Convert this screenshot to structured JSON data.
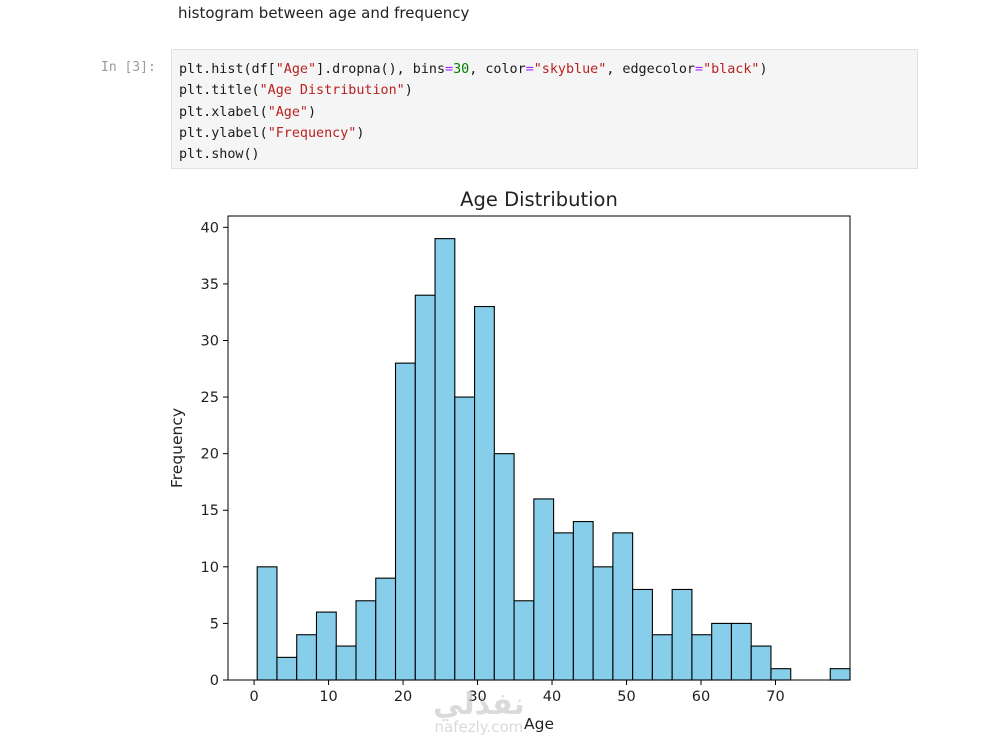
{
  "notebook": {
    "markdown_text": "histogram between age and frequency",
    "cell_prompt": "In [3]:",
    "code_lines": [
      [
        [
          "plt.hist(df[",
          ""
        ],
        [
          "\"Age\"",
          "str"
        ],
        [
          "].dropna(), bins",
          ""
        ],
        [
          "=",
          "op"
        ],
        [
          "30",
          "num"
        ],
        [
          ", color",
          ""
        ],
        [
          "=",
          "op"
        ],
        [
          "\"skyblue\"",
          "str"
        ],
        [
          ", edgecolor",
          ""
        ],
        [
          "=",
          "op"
        ],
        [
          "\"black\"",
          "str"
        ],
        [
          ")",
          ""
        ]
      ],
      [
        [
          "plt.title(",
          ""
        ],
        [
          "\"Age Distribution\"",
          "str"
        ],
        [
          ")",
          ""
        ]
      ],
      [
        [
          "plt.xlabel(",
          ""
        ],
        [
          "\"Age\"",
          "str"
        ],
        [
          ")",
          ""
        ]
      ],
      [
        [
          "plt.ylabel(",
          ""
        ],
        [
          "\"Frequency\"",
          "str"
        ],
        [
          ")",
          ""
        ]
      ],
      [
        [
          "plt.show()",
          ""
        ]
      ]
    ]
  },
  "chart_data": {
    "type": "bar",
    "title": "Age Distribution",
    "xlabel": "Age",
    "ylabel": "Frequency",
    "bin_start": 0.42,
    "bin_width": 2.6527,
    "values": [
      10,
      2,
      4,
      6,
      3,
      7,
      9,
      28,
      34,
      39,
      25,
      33,
      20,
      7,
      16,
      13,
      14,
      10,
      13,
      8,
      4,
      8,
      4,
      5,
      5,
      3,
      1,
      0,
      0,
      1
    ],
    "xlim": [
      -3.5,
      80
    ],
    "ylim": [
      0,
      41
    ],
    "xticks": [
      0,
      10,
      20,
      30,
      40,
      50,
      60,
      70
    ],
    "yticks": [
      0,
      5,
      10,
      15,
      20,
      25,
      30,
      35,
      40
    ],
    "bar_color": "#87ceeb",
    "edge_color": "#000000",
    "grid": false
  },
  "watermark": {
    "arabic": "نفذلي",
    "latin": "nafezly.com"
  }
}
